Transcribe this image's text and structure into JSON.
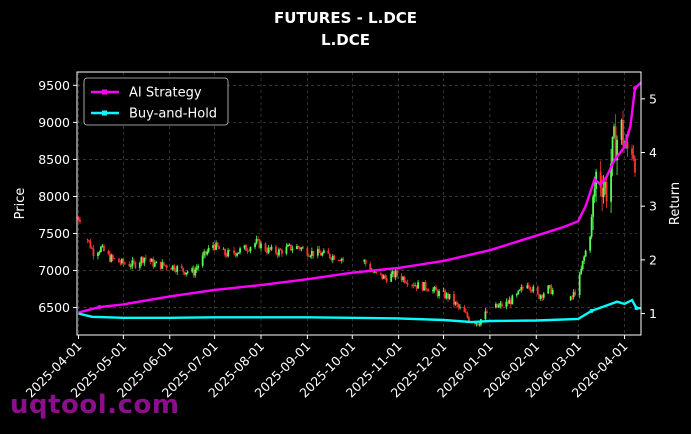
{
  "page": {
    "title": "FUTURES - L.DCE",
    "subtitle": "L.DCE",
    "watermark": "uqtool.com"
  },
  "colors": {
    "background": "#000000",
    "ai_strategy": "#ff00ff",
    "buy_and_hold": "#00ffff",
    "candle_up": "#55ff55",
    "candle_down": "#ff3333",
    "grid": "#555555",
    "watermark": "#8b0f8b"
  },
  "chart_data": {
    "type": "line",
    "title": "FUTURES - L.DCE",
    "subtitle": "L.DCE",
    "ylabel_left": "Price",
    "ylabel_right": "Return",
    "grid": true,
    "legend_position": "top-left",
    "x_range": [
      "2025-03-31",
      "2026-04-12"
    ],
    "ylim_left": [
      6130,
      9680
    ],
    "ylim_right": [
      0.6,
      5.5
    ],
    "x_ticks": [
      "2025-04-01",
      "2025-05-01",
      "2025-06-01",
      "2025-07-01",
      "2025-08-01",
      "2025-09-01",
      "2025-10-01",
      "2025-11-01",
      "2025-12-01",
      "2026-01-01",
      "2026-02-01",
      "2026-03-01",
      "2026-04-01"
    ],
    "y_ticks_left": [
      6500,
      7000,
      7500,
      8000,
      8500,
      9000,
      9500
    ],
    "y_ticks_right": [
      1,
      2,
      3,
      4,
      5
    ],
    "price_series": {
      "name": "Price (candlesticks)",
      "gaps_after": [
        "2025-04-03",
        "2025-09-26",
        "2025-12-31",
        "2026-02-13"
      ],
      "points": [
        [
          "2025-03-31",
          7720
        ],
        [
          "2025-04-03",
          7700
        ],
        [
          "2025-04-07",
          7420
        ],
        [
          "2025-04-11",
          7250
        ],
        [
          "2025-04-16",
          7300
        ],
        [
          "2025-04-22",
          7170
        ],
        [
          "2025-04-30",
          7100
        ],
        [
          "2025-05-08",
          7080
        ],
        [
          "2025-05-15",
          7180
        ],
        [
          "2025-05-22",
          7080
        ],
        [
          "2025-05-29",
          7070
        ],
        [
          "2025-06-04",
          7050
        ],
        [
          "2025-06-10",
          7000
        ],
        [
          "2025-06-17",
          6980
        ],
        [
          "2025-06-24",
          7200
        ],
        [
          "2025-06-30",
          7350
        ],
        [
          "2025-07-08",
          7220
        ],
        [
          "2025-07-15",
          7250
        ],
        [
          "2025-07-22",
          7300
        ],
        [
          "2025-07-29",
          7380
        ],
        [
          "2025-08-05",
          7280
        ],
        [
          "2025-08-12",
          7250
        ],
        [
          "2025-08-19",
          7300
        ],
        [
          "2025-08-26",
          7320
        ],
        [
          "2025-09-02",
          7250
        ],
        [
          "2025-09-09",
          7230
        ],
        [
          "2025-09-16",
          7200
        ],
        [
          "2025-09-23",
          7180
        ],
        [
          "2025-09-26",
          7150
        ],
        [
          "2025-10-09",
          7120
        ],
        [
          "2025-10-16",
          6950
        ],
        [
          "2025-10-23",
          6900
        ],
        [
          "2025-10-30",
          6950
        ],
        [
          "2025-11-06",
          6880
        ],
        [
          "2025-11-13",
          6800
        ],
        [
          "2025-11-20",
          6780
        ],
        [
          "2025-11-27",
          6700
        ],
        [
          "2025-12-04",
          6650
        ],
        [
          "2025-12-11",
          6500
        ],
        [
          "2025-12-18",
          6350
        ],
        [
          "2025-12-24",
          6300
        ],
        [
          "2025-12-31",
          6450
        ],
        [
          "2026-01-05",
          6500
        ],
        [
          "2026-01-12",
          6550
        ],
        [
          "2026-01-19",
          6650
        ],
        [
          "2026-01-26",
          6850
        ],
        [
          "2026-02-02",
          6650
        ],
        [
          "2026-02-09",
          6750
        ],
        [
          "2026-02-13",
          6720
        ],
        [
          "2026-02-24",
          6600
        ],
        [
          "2026-03-01",
          6800
        ],
        [
          "2026-03-04",
          7100
        ],
        [
          "2026-03-09",
          7500
        ],
        [
          "2026-03-13",
          8300
        ],
        [
          "2026-03-17",
          8200
        ],
        [
          "2026-03-20",
          8100
        ],
        [
          "2026-03-25",
          8700
        ],
        [
          "2026-03-30",
          8900
        ],
        [
          "2026-04-02",
          8600
        ],
        [
          "2026-04-06",
          8700
        ],
        [
          "2026-04-09",
          8500
        ]
      ]
    },
    "series": [
      {
        "name": "AI Strategy",
        "axis": "right",
        "points": [
          [
            "2025-04-01",
            1.02
          ],
          [
            "2025-04-15",
            1.12
          ],
          [
            "2025-05-01",
            1.17
          ],
          [
            "2025-06-01",
            1.32
          ],
          [
            "2025-07-01",
            1.44
          ],
          [
            "2025-08-01",
            1.53
          ],
          [
            "2025-09-01",
            1.64
          ],
          [
            "2025-10-01",
            1.76
          ],
          [
            "2025-11-01",
            1.85
          ],
          [
            "2025-12-01",
            1.98
          ],
          [
            "2026-01-01",
            2.18
          ],
          [
            "2026-02-01",
            2.45
          ],
          [
            "2026-02-20",
            2.62
          ],
          [
            "2026-03-01",
            2.72
          ],
          [
            "2026-03-06",
            3.0
          ],
          [
            "2026-03-12",
            3.5
          ],
          [
            "2026-03-16",
            3.4
          ],
          [
            "2026-03-20",
            3.55
          ],
          [
            "2026-03-25",
            3.85
          ],
          [
            "2026-04-01",
            4.1
          ],
          [
            "2026-04-05",
            4.5
          ],
          [
            "2026-04-08",
            5.2
          ],
          [
            "2026-04-12",
            5.3
          ]
        ]
      },
      {
        "name": "Buy-and-Hold",
        "axis": "right",
        "points": [
          [
            "2025-04-01",
            1.0
          ],
          [
            "2025-04-10",
            0.94
          ],
          [
            "2025-05-01",
            0.92
          ],
          [
            "2025-06-01",
            0.92
          ],
          [
            "2025-07-01",
            0.93
          ],
          [
            "2025-08-01",
            0.93
          ],
          [
            "2025-09-01",
            0.93
          ],
          [
            "2025-10-01",
            0.92
          ],
          [
            "2025-11-01",
            0.91
          ],
          [
            "2025-12-01",
            0.88
          ],
          [
            "2025-12-20",
            0.84
          ],
          [
            "2026-01-01",
            0.86
          ],
          [
            "2026-02-01",
            0.87
          ],
          [
            "2026-03-01",
            0.9
          ],
          [
            "2026-03-10",
            1.05
          ],
          [
            "2026-03-20",
            1.15
          ],
          [
            "2026-03-27",
            1.22
          ],
          [
            "2026-04-01",
            1.18
          ],
          [
            "2026-04-06",
            1.25
          ],
          [
            "2026-04-09",
            1.1
          ],
          [
            "2026-04-12",
            1.1
          ]
        ]
      }
    ]
  }
}
